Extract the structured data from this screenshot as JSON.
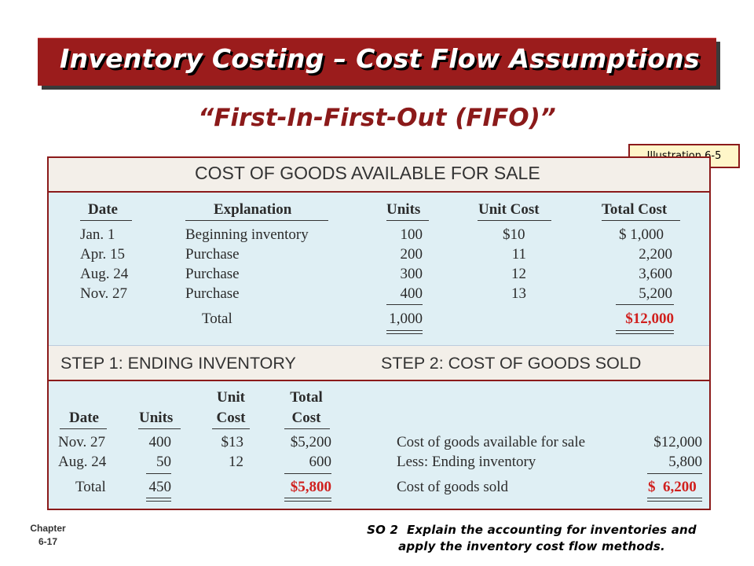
{
  "title": "Inventory Costing – Cost Flow Assumptions",
  "subtitle": "“First-In-First-Out (FIFO)”",
  "illustration_label": "Illustration 6-5",
  "available": {
    "heading": "COST OF GOODS AVAILABLE FOR SALE",
    "columns": [
      "Date",
      "Explanation",
      "Units",
      "Unit Cost",
      "Total Cost"
    ],
    "rows": [
      {
        "date": "Jan.   1",
        "explanation": "Beginning inventory",
        "units": "100",
        "unit_cost": "$10",
        "total_cost": "$  1,000"
      },
      {
        "date": "Apr. 15",
        "explanation": "Purchase",
        "units": "200",
        "unit_cost": "11",
        "total_cost": "2,200"
      },
      {
        "date": "Aug. 24",
        "explanation": "Purchase",
        "units": "300",
        "unit_cost": "12",
        "total_cost": "3,600"
      },
      {
        "date": "Nov. 27",
        "explanation": "Purchase",
        "units": "400",
        "unit_cost": "13",
        "total_cost": "5,200"
      }
    ],
    "total_label": "Total",
    "total_units": "1,000",
    "total_cost": "$12,000"
  },
  "steps": {
    "step1_heading": "STEP 1: ENDING INVENTORY",
    "step2_heading": "STEP 2: COST OF GOODS SOLD",
    "step1_columns": {
      "date": "Date",
      "units": "Units",
      "unit_cost_1": "Unit",
      "unit_cost_2": "Cost",
      "total_cost_1": "Total",
      "total_cost_2": "Cost"
    },
    "step1_rows": [
      {
        "date": "Nov. 27",
        "units": "400",
        "unit_cost": "$13",
        "total_cost": "$5,200"
      },
      {
        "date": "Aug. 24",
        "units": "50",
        "unit_cost": "12",
        "total_cost": "600"
      }
    ],
    "step1_total_label": "Total",
    "step1_total_units": "450",
    "step1_total_cost": "$5,800",
    "step2_rows": [
      {
        "label": "Cost of goods available for sale",
        "value": "$12,000"
      },
      {
        "label": "Less: Ending inventory",
        "value": "5,800"
      }
    ],
    "step2_total_label": "Cost of goods sold",
    "step2_total_value": "$  6,200"
  },
  "footer": {
    "chapter_line1": "Chapter",
    "chapter_line2": "6-17",
    "so_line1": "SO 2  Explain the accounting for inventories and",
    "so_line2": "apply the inventory cost flow methods."
  },
  "colors": {
    "title_bg": "#9b1c1c",
    "subtitle": "#8b1a1a",
    "panel_bg": "#dfeff4",
    "band_bg": "#f3efe9",
    "highlight": "#d0201e",
    "illustration_bg": "#fff6c9"
  }
}
